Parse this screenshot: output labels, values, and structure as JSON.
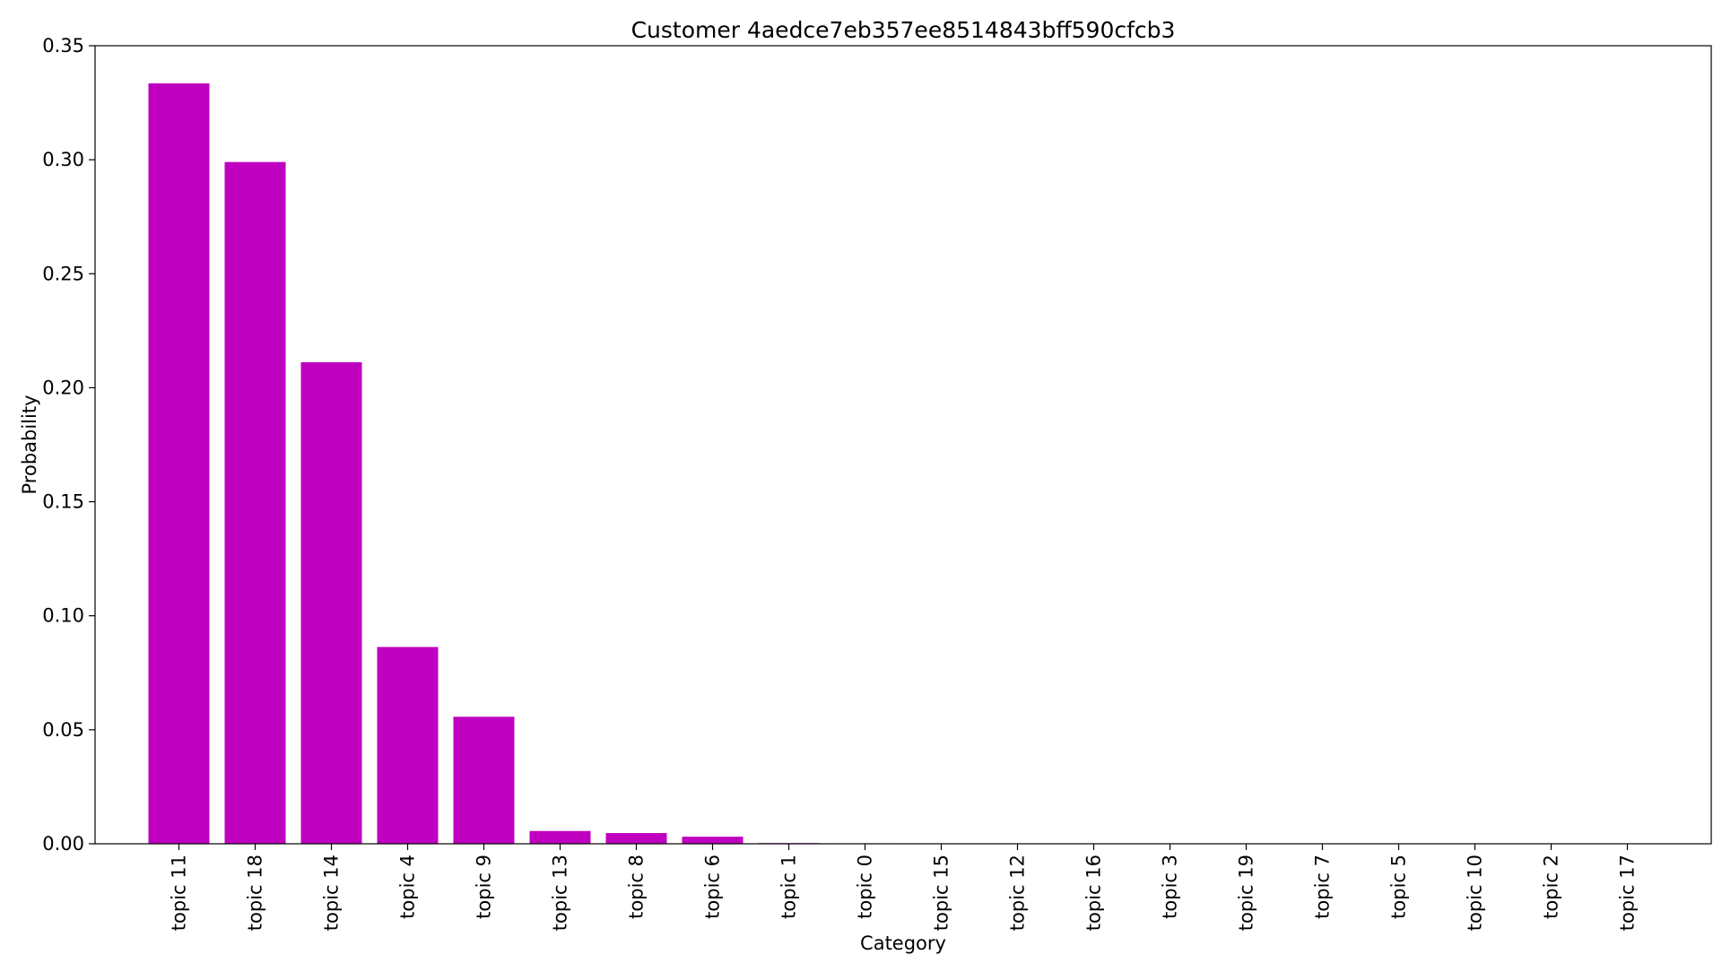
{
  "chart_data": {
    "type": "bar",
    "title": "Customer 4aedce7eb357ee8514843bff590cfcb3",
    "xlabel": "Category",
    "ylabel": "Probability",
    "ylim": [
      0,
      0.35
    ],
    "yticks": [
      0.0,
      0.05,
      0.1,
      0.15,
      0.2,
      0.25,
      0.3,
      0.35
    ],
    "ytick_labels": [
      "0.00",
      "0.05",
      "0.10",
      "0.15",
      "0.20",
      "0.25",
      "0.30",
      "0.35"
    ],
    "grid": false,
    "bar_color": "#bf00bf",
    "categories": [
      "topic 11",
      "topic 18",
      "topic 14",
      "topic 4",
      "topic 9",
      "topic 13",
      "topic 8",
      "topic 6",
      "topic 1",
      "topic 0",
      "topic 15",
      "topic 12",
      "topic 16",
      "topic 3",
      "topic 19",
      "topic 7",
      "topic 5",
      "topic 10",
      "topic 2",
      "topic 17"
    ],
    "values": [
      0.3335,
      0.299,
      0.2112,
      0.0863,
      0.0557,
      0.0056,
      0.0047,
      0.0031,
      0.0003,
      0.0002,
      0.0001,
      0.0001,
      0.0001,
      0.0001,
      0.0001,
      0.0001,
      0.0001,
      0.0001,
      0.0001,
      0.0001
    ]
  }
}
